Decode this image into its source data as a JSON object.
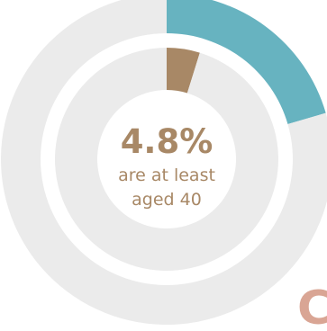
{
  "chart_data": [
    {
      "type": "pie",
      "ring": "outer",
      "slices": [
        {
          "label": "",
          "value": 20.5,
          "color": "#67b3c0"
        },
        {
          "label": "",
          "value": 79.5,
          "color": "#ebebeb"
        }
      ]
    },
    {
      "type": "pie",
      "ring": "inner",
      "slices": [
        {
          "label": "",
          "value": 4.8,
          "color": "#a88866"
        },
        {
          "label": "",
          "value": 95.2,
          "color": "#ebebeb"
        }
      ]
    }
  ],
  "center": {
    "value": "4.8%",
    "caption_line1": "are at least",
    "caption_line2": "aged 40"
  },
  "corner_glyph": "C",
  "colors": {
    "accent_blue": "#67b3c0",
    "accent_brown": "#a88866",
    "track_gray": "#ebebeb",
    "corner_glyph": "#d9a594"
  }
}
